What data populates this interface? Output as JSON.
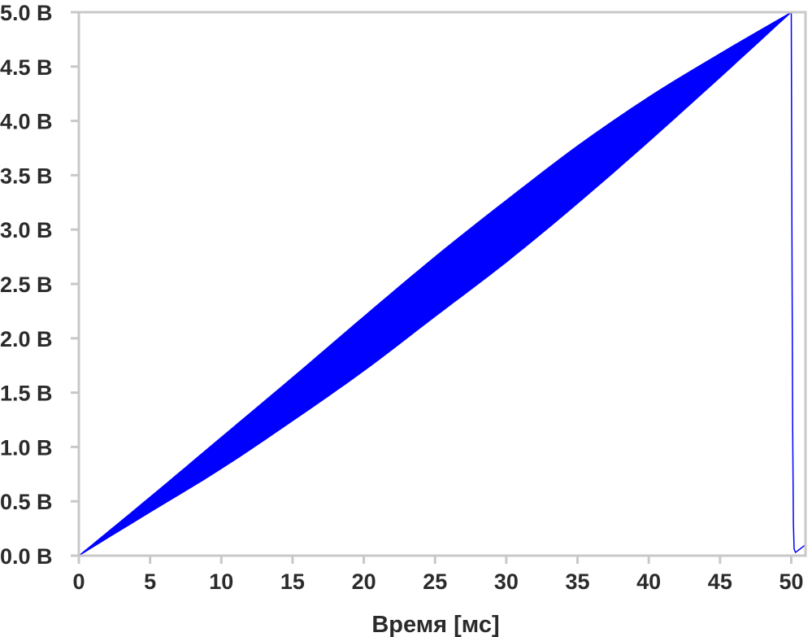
{
  "chart_data": {
    "type": "area",
    "title": "",
    "xlabel": "Время [мс]",
    "ylabel": "",
    "xlim": [
      0,
      51
    ],
    "ylim": [
      0,
      5
    ],
    "x_ticks": [
      0,
      5,
      10,
      15,
      20,
      25,
      30,
      35,
      40,
      45,
      50
    ],
    "x_tick_labels": [
      "0",
      "5",
      "10",
      "15",
      "20",
      "25",
      "30",
      "35",
      "40",
      "45",
      "50"
    ],
    "y_ticks": [
      0,
      0.5,
      1,
      1.5,
      2,
      2.5,
      3,
      3.5,
      4,
      4.5,
      5
    ],
    "y_tick_labels": [
      "0.0 В",
      "0.5 В",
      "1.0 В",
      "1.5 В",
      "2.0 В",
      "2.5 В",
      "3.0 В",
      "3.5 В",
      "4.0 В",
      "4.5 В",
      "5.0 В"
    ],
    "grid": false,
    "legend": "none",
    "series": [
      {
        "style": "band",
        "color": "#0000ff",
        "x": [
          0,
          5,
          10,
          15,
          20,
          25,
          30,
          35,
          40,
          45,
          50
        ],
        "upper": [
          0,
          0.54,
          1.09,
          1.64,
          2.2,
          2.75,
          3.27,
          3.77,
          4.22,
          4.62,
          5.0
        ],
        "lower": [
          0,
          0.4,
          0.8,
          1.24,
          1.7,
          2.2,
          2.7,
          3.24,
          3.81,
          4.4,
          5.0
        ]
      },
      {
        "style": "line",
        "color": "#0000ff",
        "x": [
          50,
          50.05,
          50.1,
          50.15,
          50.2,
          50.3,
          50.4,
          50.6,
          50.8,
          51
        ],
        "y": [
          5.0,
          3.0,
          1.2,
          0.3,
          0.06,
          0.03,
          0.04,
          0.06,
          0.08,
          0.1
        ]
      }
    ],
    "colors": {
      "axis": "#c8c8c8",
      "text": "#2b2b2b",
      "signal": "#0000ff"
    }
  }
}
